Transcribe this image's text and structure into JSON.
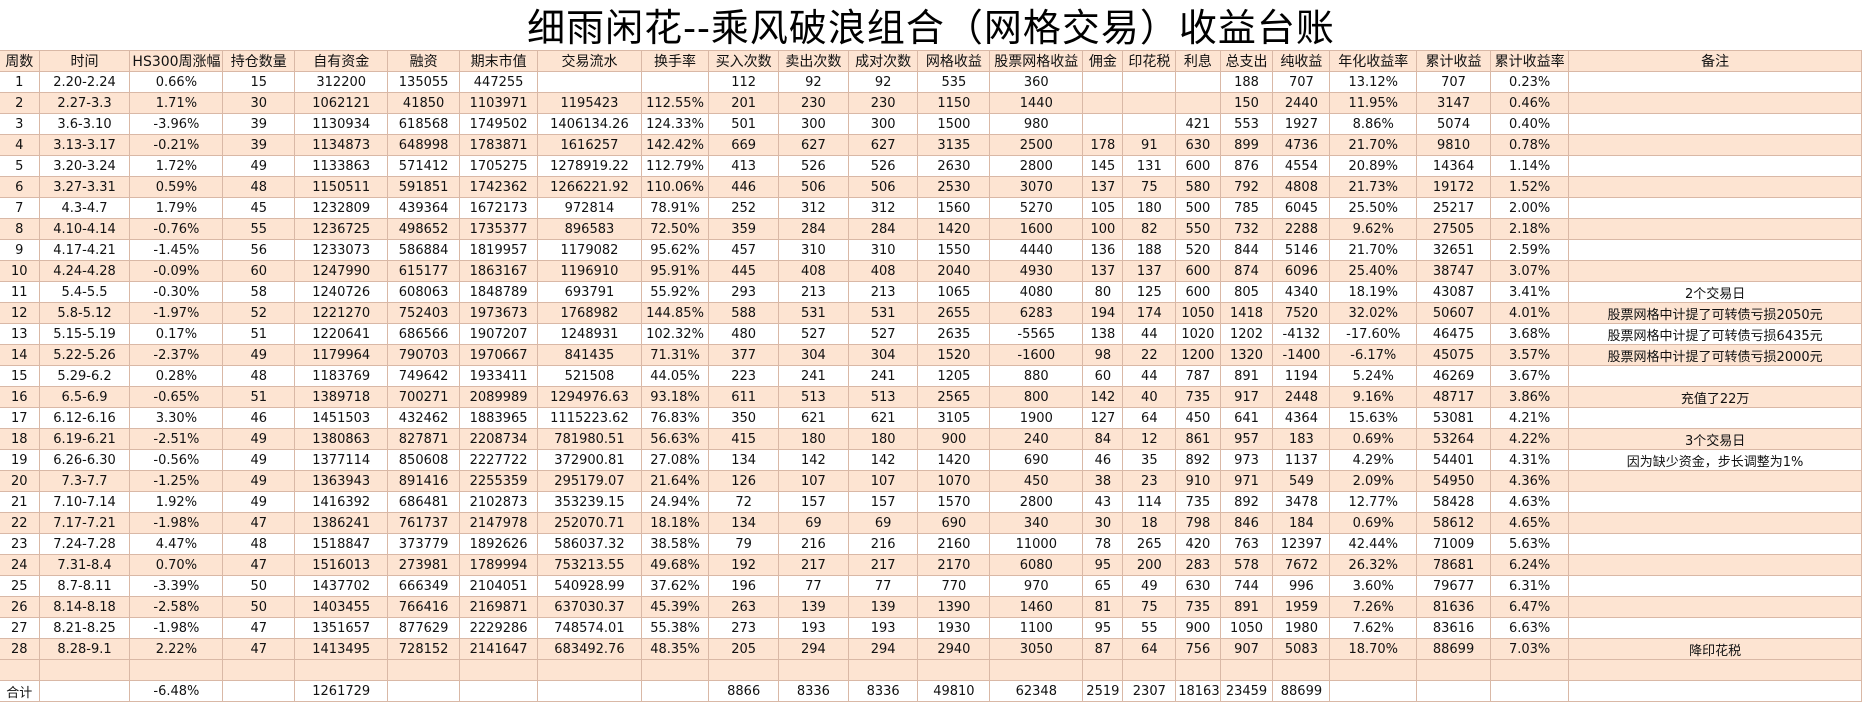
{
  "title": "细雨闲花--乘风破浪组合（网格交易）收益台账",
  "headers": [
    "周数",
    "时间",
    "HS300周涨幅",
    "持仓数量",
    "自有资金",
    "融资",
    "期末市值",
    "交易流水",
    "换手率",
    "买入次数",
    "卖出次数",
    "成对次数",
    "网格收益",
    "股票网格收益",
    "佣金",
    "印花税",
    "利息",
    "总支出",
    "纯收益",
    "年化收益率",
    "累计收益",
    "累计收益率",
    "备注"
  ],
  "rows": [
    [
      "1",
      "2.20-2.24",
      "0.66%",
      "15",
      "312200",
      "135055",
      "447255",
      "",
      "",
      "112",
      "92",
      "92",
      "535",
      "360",
      "",
      "",
      "",
      "188",
      "707",
      "13.12%",
      "707",
      "0.23%",
      ""
    ],
    [
      "2",
      "2.27-3.3",
      "1.71%",
      "30",
      "1062121",
      "41850",
      "1103971",
      "1195423",
      "112.55%",
      "201",
      "230",
      "230",
      "1150",
      "1440",
      "",
      "",
      "",
      "150",
      "2440",
      "11.95%",
      "3147",
      "0.46%",
      ""
    ],
    [
      "3",
      "3.6-3.10",
      "-3.96%",
      "39",
      "1130934",
      "618568",
      "1749502",
      "1406134.26",
      "124.33%",
      "501",
      "300",
      "300",
      "1500",
      "980",
      "",
      "",
      "421",
      "553",
      "1927",
      "8.86%",
      "5074",
      "0.40%",
      ""
    ],
    [
      "4",
      "3.13-3.17",
      "-0.21%",
      "39",
      "1134873",
      "648998",
      "1783871",
      "1616257",
      "142.42%",
      "669",
      "627",
      "627",
      "3135",
      "2500",
      "178",
      "91",
      "630",
      "899",
      "4736",
      "21.70%",
      "9810",
      "0.78%",
      ""
    ],
    [
      "5",
      "3.20-3.24",
      "1.72%",
      "49",
      "1133863",
      "571412",
      "1705275",
      "1278919.22",
      "112.79%",
      "413",
      "526",
      "526",
      "2630",
      "2800",
      "145",
      "131",
      "600",
      "876",
      "4554",
      "20.89%",
      "14364",
      "1.14%",
      ""
    ],
    [
      "6",
      "3.27-3.31",
      "0.59%",
      "48",
      "1150511",
      "591851",
      "1742362",
      "1266221.92",
      "110.06%",
      "446",
      "506",
      "506",
      "2530",
      "3070",
      "137",
      "75",
      "580",
      "792",
      "4808",
      "21.73%",
      "19172",
      "1.52%",
      ""
    ],
    [
      "7",
      "4.3-4.7",
      "1.79%",
      "45",
      "1232809",
      "439364",
      "1672173",
      "972814",
      "78.91%",
      "252",
      "312",
      "312",
      "1560",
      "5270",
      "105",
      "180",
      "500",
      "785",
      "6045",
      "25.50%",
      "25217",
      "2.00%",
      ""
    ],
    [
      "8",
      "4.10-4.14",
      "-0.76%",
      "55",
      "1236725",
      "498652",
      "1735377",
      "896583",
      "72.50%",
      "359",
      "284",
      "284",
      "1420",
      "1600",
      "100",
      "82",
      "550",
      "732",
      "2288",
      "9.62%",
      "27505",
      "2.18%",
      ""
    ],
    [
      "9",
      "4.17-4.21",
      "-1.45%",
      "56",
      "1233073",
      "586884",
      "1819957",
      "1179082",
      "95.62%",
      "457",
      "310",
      "310",
      "1550",
      "4440",
      "136",
      "188",
      "520",
      "844",
      "5146",
      "21.70%",
      "32651",
      "2.59%",
      ""
    ],
    [
      "10",
      "4.24-4.28",
      "-0.09%",
      "60",
      "1247990",
      "615177",
      "1863167",
      "1196910",
      "95.91%",
      "445",
      "408",
      "408",
      "2040",
      "4930",
      "137",
      "137",
      "600",
      "874",
      "6096",
      "25.40%",
      "38747",
      "3.07%",
      ""
    ],
    [
      "11",
      "5.4-5.5",
      "-0.30%",
      "58",
      "1240726",
      "608063",
      "1848789",
      "693791",
      "55.92%",
      "293",
      "213",
      "213",
      "1065",
      "4080",
      "80",
      "125",
      "600",
      "805",
      "4340",
      "18.19%",
      "43087",
      "3.41%",
      "2个交易日"
    ],
    [
      "12",
      "5.8-5.12",
      "-1.97%",
      "52",
      "1221270",
      "752403",
      "1973673",
      "1768982",
      "144.85%",
      "588",
      "531",
      "531",
      "2655",
      "6283",
      "194",
      "174",
      "1050",
      "1418",
      "7520",
      "32.02%",
      "50607",
      "4.01%",
      "股票网格中计提了可转债亏损2050元"
    ],
    [
      "13",
      "5.15-5.19",
      "0.17%",
      "51",
      "1220641",
      "686566",
      "1907207",
      "1248931",
      "102.32%",
      "480",
      "527",
      "527",
      "2635",
      "-5565",
      "138",
      "44",
      "1020",
      "1202",
      "-4132",
      "-17.60%",
      "46475",
      "3.68%",
      "股票网格中计提了可转债亏损6435元"
    ],
    [
      "14",
      "5.22-5.26",
      "-2.37%",
      "49",
      "1179964",
      "790703",
      "1970667",
      "841435",
      "71.31%",
      "377",
      "304",
      "304",
      "1520",
      "-1600",
      "98",
      "22",
      "1200",
      "1320",
      "-1400",
      "-6.17%",
      "45075",
      "3.57%",
      "股票网格中计提了可转债亏损2000元"
    ],
    [
      "15",
      "5.29-6.2",
      "0.28%",
      "48",
      "1183769",
      "749642",
      "1933411",
      "521508",
      "44.05%",
      "223",
      "241",
      "241",
      "1205",
      "880",
      "60",
      "44",
      "787",
      "891",
      "1194",
      "5.24%",
      "46269",
      "3.67%",
      ""
    ],
    [
      "16",
      "6.5-6.9",
      "-0.65%",
      "51",
      "1389718",
      "700271",
      "2089989",
      "1294976.63",
      "93.18%",
      "611",
      "513",
      "513",
      "2565",
      "800",
      "142",
      "40",
      "735",
      "917",
      "2448",
      "9.16%",
      "48717",
      "3.86%",
      "充值了22万"
    ],
    [
      "17",
      "6.12-6.16",
      "3.30%",
      "46",
      "1451503",
      "432462",
      "1883965",
      "1115223.62",
      "76.83%",
      "350",
      "621",
      "621",
      "3105",
      "1900",
      "127",
      "64",
      "450",
      "641",
      "4364",
      "15.63%",
      "53081",
      "4.21%",
      ""
    ],
    [
      "18",
      "6.19-6.21",
      "-2.51%",
      "49",
      "1380863",
      "827871",
      "2208734",
      "781980.51",
      "56.63%",
      "415",
      "180",
      "180",
      "900",
      "240",
      "84",
      "12",
      "861",
      "957",
      "183",
      "0.69%",
      "53264",
      "4.22%",
      "3个交易日"
    ],
    [
      "19",
      "6.26-6.30",
      "-0.56%",
      "49",
      "1377114",
      "850608",
      "2227722",
      "372900.81",
      "27.08%",
      "134",
      "142",
      "142",
      "1420",
      "690",
      "46",
      "35",
      "892",
      "973",
      "1137",
      "4.29%",
      "54401",
      "4.31%",
      "因为缺少资金，步长调整为1%"
    ],
    [
      "20",
      "7.3-7.7",
      "-1.25%",
      "49",
      "1363943",
      "891416",
      "2255359",
      "295179.07",
      "21.64%",
      "126",
      "107",
      "107",
      "1070",
      "450",
      "38",
      "23",
      "910",
      "971",
      "549",
      "2.09%",
      "54950",
      "4.36%",
      ""
    ],
    [
      "21",
      "7.10-7.14",
      "1.92%",
      "49",
      "1416392",
      "686481",
      "2102873",
      "353239.15",
      "24.94%",
      "72",
      "157",
      "157",
      "1570",
      "2800",
      "43",
      "114",
      "735",
      "892",
      "3478",
      "12.77%",
      "58428",
      "4.63%",
      ""
    ],
    [
      "22",
      "7.17-7.21",
      "-1.98%",
      "47",
      "1386241",
      "761737",
      "2147978",
      "252070.71",
      "18.18%",
      "134",
      "69",
      "69",
      "690",
      "340",
      "30",
      "18",
      "798",
      "846",
      "184",
      "0.69%",
      "58612",
      "4.65%",
      ""
    ],
    [
      "23",
      "7.24-7.28",
      "4.47%",
      "48",
      "1518847",
      "373779",
      "1892626",
      "586037.32",
      "38.58%",
      "79",
      "216",
      "216",
      "2160",
      "11000",
      "78",
      "265",
      "420",
      "763",
      "12397",
      "42.44%",
      "71009",
      "5.63%",
      ""
    ],
    [
      "24",
      "7.31-8.4",
      "0.70%",
      "47",
      "1516013",
      "273981",
      "1789994",
      "753213.55",
      "49.68%",
      "192",
      "217",
      "217",
      "2170",
      "6080",
      "95",
      "200",
      "283",
      "578",
      "7672",
      "26.32%",
      "78681",
      "6.24%",
      ""
    ],
    [
      "25",
      "8.7-8.11",
      "-3.39%",
      "50",
      "1437702",
      "666349",
      "2104051",
      "540928.99",
      "37.62%",
      "196",
      "77",
      "77",
      "770",
      "970",
      "65",
      "49",
      "630",
      "744",
      "996",
      "3.60%",
      "79677",
      "6.31%",
      ""
    ],
    [
      "26",
      "8.14-8.18",
      "-2.58%",
      "50",
      "1403455",
      "766416",
      "2169871",
      "637030.37",
      "45.39%",
      "263",
      "139",
      "139",
      "1390",
      "1460",
      "81",
      "75",
      "735",
      "891",
      "1959",
      "7.26%",
      "81636",
      "6.47%",
      ""
    ],
    [
      "27",
      "8.21-8.25",
      "-1.98%",
      "47",
      "1351657",
      "877629",
      "2229286",
      "748574.01",
      "55.38%",
      "273",
      "193",
      "193",
      "1930",
      "1100",
      "95",
      "55",
      "900",
      "1050",
      "1980",
      "7.62%",
      "83616",
      "6.63%",
      ""
    ],
    [
      "28",
      "8.28-9.1",
      "2.22%",
      "47",
      "1413495",
      "728152",
      "2141647",
      "683492.76",
      "48.35%",
      "205",
      "294",
      "294",
      "2940",
      "3050",
      "87",
      "64",
      "756",
      "907",
      "5083",
      "18.70%",
      "88699",
      "7.03%",
      "降印花税"
    ]
  ],
  "totals": [
    "合计",
    "",
    "-6.48%",
    "",
    "1261729",
    "",
    "",
    "",
    "",
    "8866",
    "8336",
    "8336",
    "49810",
    "62348",
    "2519",
    "2307",
    "18163",
    "23459",
    "88699",
    "",
    "",
    "",
    ""
  ]
}
